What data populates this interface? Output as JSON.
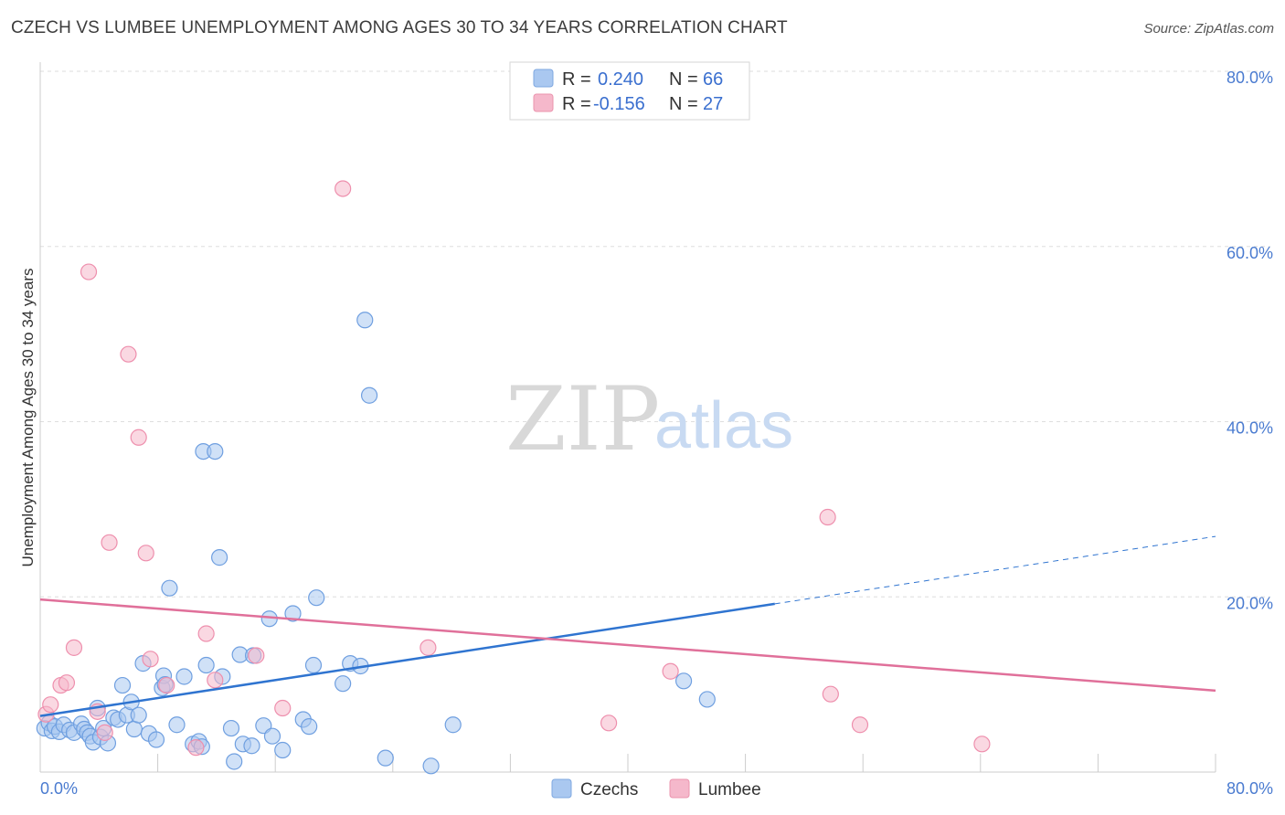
{
  "header": {
    "title": "CZECH VS LUMBEE UNEMPLOYMENT AMONG AGES 30 TO 34 YEARS CORRELATION CHART",
    "source": "Source: ZipAtlas.com"
  },
  "watermark": {
    "zip": "ZIP",
    "atlas": "atlas"
  },
  "legend": {
    "rows": [
      {
        "r_label": "R =",
        "r_value": "0.240",
        "n_label": "N =",
        "n_value": "66",
        "color": "#aac8f0"
      },
      {
        "r_label": "R =",
        "r_value": "-0.156",
        "n_label": "N =",
        "n_value": "27",
        "color": "#f5b8cb"
      }
    ],
    "bottom": [
      {
        "label": "Czechs",
        "color": "#aac8f0"
      },
      {
        "label": "Lumbee",
        "color": "#f5b8cb"
      }
    ]
  },
  "chart_data": {
    "type": "scatter",
    "title": "CZECH VS LUMBEE UNEMPLOYMENT AMONG AGES 30 TO 34 YEARS CORRELATION CHART",
    "xlabel": "",
    "ylabel": "Unemployment Among Ages 30 to 34 years",
    "xlim": [
      0,
      80
    ],
    "ylim": [
      0,
      80
    ],
    "x_tick_labels": [
      "0.0%",
      "80.0%"
    ],
    "y_ticks": [
      20,
      40,
      60,
      80
    ],
    "y_tick_labels": [
      "20.0%",
      "40.0%",
      "60.0%",
      "80.0%"
    ],
    "grid": true,
    "series": [
      {
        "name": "Czechs",
        "color": "#6f9fe0",
        "fill": "#aac8f0",
        "trend": {
          "x0": 0,
          "y0": 6.4,
          "x1": 50,
          "y1": 19.2,
          "dash_to": 80,
          "dash_y": 26.9
        },
        "points": [
          [
            0.3,
            5.0
          ],
          [
            0.6,
            5.6
          ],
          [
            0.8,
            4.7
          ],
          [
            1.0,
            5.2
          ],
          [
            1.3,
            4.6
          ],
          [
            1.6,
            5.4
          ],
          [
            2.0,
            4.8
          ],
          [
            2.3,
            4.5
          ],
          [
            2.8,
            5.5
          ],
          [
            3.0,
            4.9
          ],
          [
            3.2,
            4.5
          ],
          [
            3.4,
            4.1
          ],
          [
            3.6,
            3.4
          ],
          [
            3.9,
            7.3
          ],
          [
            4.1,
            4.0
          ],
          [
            4.3,
            5.0
          ],
          [
            4.6,
            3.3
          ],
          [
            5.0,
            6.2
          ],
          [
            5.3,
            6.0
          ],
          [
            5.6,
            9.9
          ],
          [
            5.9,
            6.5
          ],
          [
            6.2,
            8.0
          ],
          [
            6.4,
            4.9
          ],
          [
            6.7,
            6.5
          ],
          [
            7.0,
            12.4
          ],
          [
            7.4,
            4.4
          ],
          [
            7.9,
            3.7
          ],
          [
            8.3,
            9.6
          ],
          [
            8.4,
            11.0
          ],
          [
            8.5,
            10.0
          ],
          [
            8.8,
            21.0
          ],
          [
            9.3,
            5.4
          ],
          [
            9.8,
            10.9
          ],
          [
            10.4,
            3.2
          ],
          [
            10.8,
            3.5
          ],
          [
            11.0,
            2.9
          ],
          [
            11.1,
            36.6
          ],
          [
            11.3,
            12.2
          ],
          [
            11.9,
            36.6
          ],
          [
            12.2,
            24.5
          ],
          [
            12.4,
            10.9
          ],
          [
            13.0,
            5.0
          ],
          [
            13.2,
            1.2
          ],
          [
            13.8,
            3.2
          ],
          [
            13.6,
            13.4
          ],
          [
            14.4,
            3.0
          ],
          [
            14.5,
            13.3
          ],
          [
            15.2,
            5.3
          ],
          [
            15.6,
            17.5
          ],
          [
            15.8,
            4.1
          ],
          [
            16.5,
            2.5
          ],
          [
            17.2,
            18.1
          ],
          [
            17.9,
            6.0
          ],
          [
            18.3,
            5.2
          ],
          [
            18.6,
            12.2
          ],
          [
            18.8,
            19.9
          ],
          [
            20.6,
            10.1
          ],
          [
            21.1,
            12.4
          ],
          [
            21.8,
            12.1
          ],
          [
            22.1,
            51.6
          ],
          [
            22.4,
            43.0
          ],
          [
            23.5,
            1.6
          ],
          [
            26.6,
            0.7
          ],
          [
            28.1,
            5.4
          ],
          [
            43.8,
            10.4
          ],
          [
            45.4,
            8.3
          ]
        ]
      },
      {
        "name": "Lumbee",
        "color": "#ee8fad",
        "fill": "#f5b8cb",
        "trend": {
          "x0": 0,
          "y0": 19.7,
          "x1": 80,
          "y1": 9.3
        },
        "points": [
          [
            0.4,
            6.6
          ],
          [
            0.7,
            7.7
          ],
          [
            1.4,
            9.9
          ],
          [
            1.8,
            10.2
          ],
          [
            2.3,
            14.2
          ],
          [
            3.3,
            57.1
          ],
          [
            3.9,
            6.9
          ],
          [
            4.4,
            4.5
          ],
          [
            4.7,
            26.2
          ],
          [
            6.0,
            47.7
          ],
          [
            6.7,
            38.2
          ],
          [
            7.2,
            25.0
          ],
          [
            7.5,
            12.9
          ],
          [
            8.6,
            9.9
          ],
          [
            10.6,
            2.8
          ],
          [
            11.3,
            15.8
          ],
          [
            11.9,
            10.5
          ],
          [
            14.7,
            13.3
          ],
          [
            16.5,
            7.3
          ],
          [
            20.6,
            66.6
          ],
          [
            26.4,
            14.2
          ],
          [
            38.7,
            5.6
          ],
          [
            42.9,
            11.5
          ],
          [
            53.6,
            29.1
          ],
          [
            53.8,
            8.9
          ],
          [
            55.8,
            5.4
          ],
          [
            64.1,
            3.2
          ]
        ]
      }
    ]
  }
}
